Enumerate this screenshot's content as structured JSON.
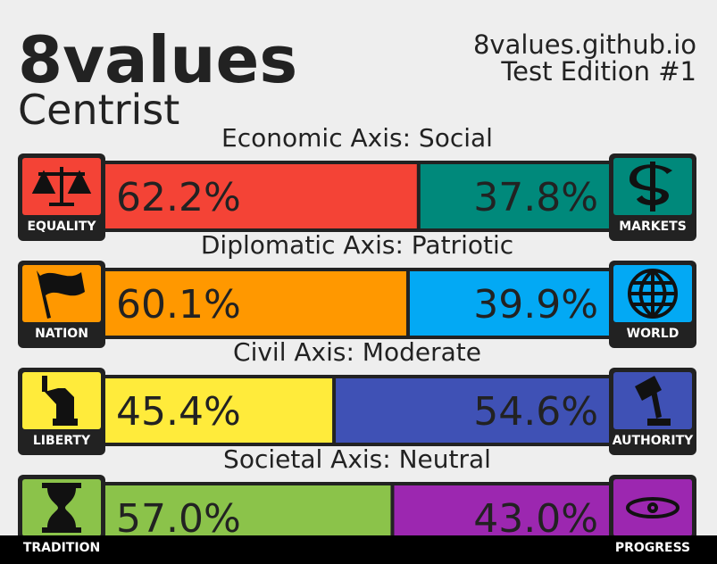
{
  "header": {
    "title": "8values",
    "subtitle": "Centrist",
    "site": "8values.github.io",
    "edition": "Test Edition #1"
  },
  "axes": [
    {
      "title": "Economic Axis: Social",
      "left": {
        "label": "EQUALITY",
        "value": 62.2,
        "value_label": "62.2%",
        "color": "#f44336"
      },
      "right": {
        "label": "MARKETS",
        "value": 37.8,
        "value_label": "37.8%",
        "color": "#00897b"
      }
    },
    {
      "title": "Diplomatic Axis: Patriotic",
      "left": {
        "label": "NATION",
        "value": 60.1,
        "value_label": "60.1%",
        "color": "#ff9800"
      },
      "right": {
        "label": "WORLD",
        "value": 39.9,
        "value_label": "39.9%",
        "color": "#03a9f4"
      }
    },
    {
      "title": "Civil Axis: Moderate",
      "left": {
        "label": "LIBERTY",
        "value": 45.4,
        "value_label": "45.4%",
        "color": "#ffeb3b"
      },
      "right": {
        "label": "AUTHORITY",
        "value": 54.6,
        "value_label": "54.6%",
        "color": "#3f51b5"
      }
    },
    {
      "title": "Societal Axis: Neutral",
      "left": {
        "label": "TRADITION",
        "value": 57.0,
        "value_label": "57.0%",
        "color": "#8bc34a"
      },
      "right": {
        "label": "PROGRESS",
        "value": 43.0,
        "value_label": "43.0%",
        "color": "#9c27b0"
      }
    }
  ]
}
